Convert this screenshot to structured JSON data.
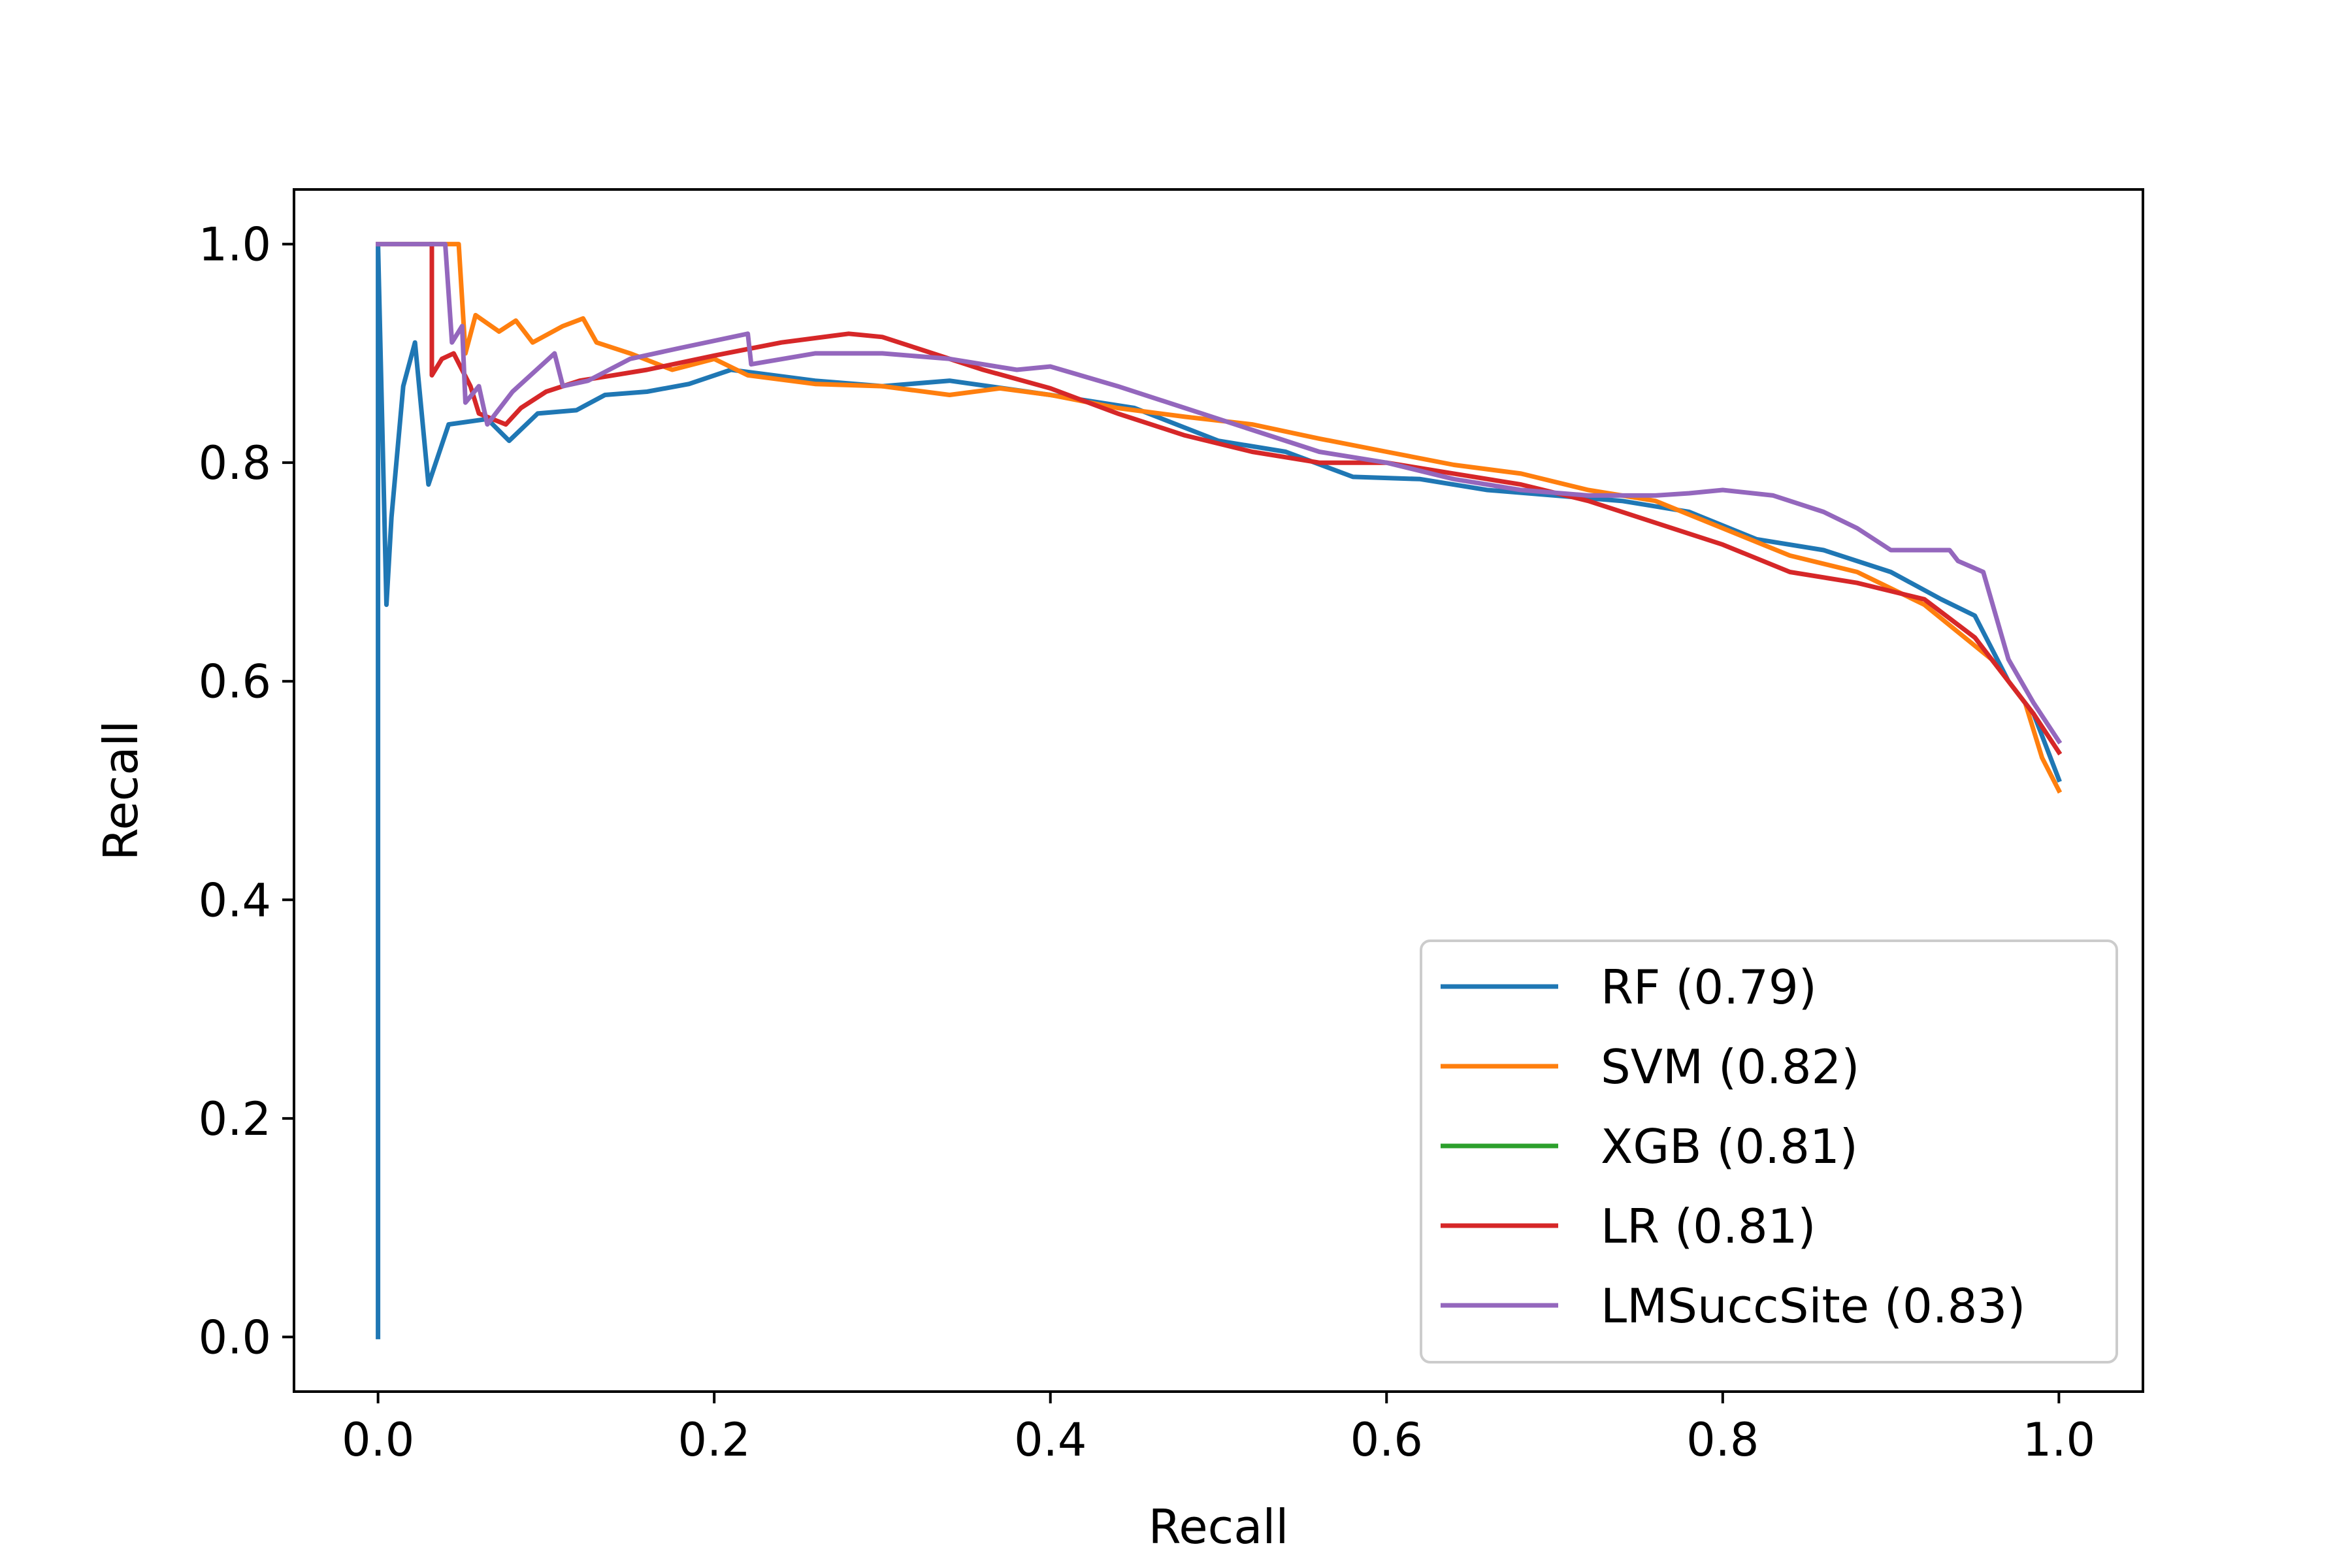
{
  "chart_data": {
    "type": "line",
    "title": "",
    "xlabel": "Recall",
    "ylabel": "Recall",
    "xlim": [
      -0.05,
      1.05
    ],
    "ylim": [
      -0.05,
      1.05
    ],
    "xticks": [
      0.0,
      0.2,
      0.4,
      0.6,
      0.8,
      1.0
    ],
    "xtick_labels": [
      "0.0",
      "0.2",
      "0.4",
      "0.6",
      "0.8",
      "1.0"
    ],
    "yticks": [
      0.0,
      0.2,
      0.4,
      0.6,
      0.8,
      1.0
    ],
    "ytick_labels": [
      "0.0",
      "0.2",
      "0.4",
      "0.6",
      "0.8",
      "1.0"
    ],
    "grid": false,
    "legend_position": "lower-right",
    "series": [
      {
        "name": "RF",
        "label": "RF (0.79)",
        "auc": 0.79,
        "color": "#1f77b4",
        "x": [
          0.0,
          0.0,
          0.005,
          0.008,
          0.015,
          0.022,
          0.03,
          0.042,
          0.065,
          0.078,
          0.095,
          0.118,
          0.135,
          0.16,
          0.185,
          0.21,
          0.235,
          0.26,
          0.3,
          0.34,
          0.4,
          0.45,
          0.5,
          0.54,
          0.58,
          0.62,
          0.66,
          0.7,
          0.74,
          0.78,
          0.82,
          0.86,
          0.9,
          0.93,
          0.95,
          0.97,
          0.985,
          1.0
        ],
        "y": [
          0.0,
          1.0,
          0.67,
          0.75,
          0.87,
          0.91,
          0.78,
          0.835,
          0.84,
          0.82,
          0.845,
          0.848,
          0.862,
          0.865,
          0.872,
          0.885,
          0.88,
          0.875,
          0.87,
          0.875,
          0.862,
          0.85,
          0.82,
          0.81,
          0.787,
          0.785,
          0.775,
          0.77,
          0.765,
          0.755,
          0.73,
          0.72,
          0.7,
          0.675,
          0.66,
          0.6,
          0.57,
          0.51
        ]
      },
      {
        "name": "SVM",
        "label": "SVM (0.82)",
        "auc": 0.82,
        "color": "#ff7f0e",
        "x": [
          0.0,
          0.048,
          0.052,
          0.058,
          0.072,
          0.082,
          0.092,
          0.11,
          0.122,
          0.13,
          0.15,
          0.175,
          0.2,
          0.22,
          0.26,
          0.3,
          0.34,
          0.37,
          0.4,
          0.44,
          0.48,
          0.52,
          0.56,
          0.6,
          0.64,
          0.68,
          0.72,
          0.76,
          0.8,
          0.84,
          0.88,
          0.92,
          0.96,
          0.98,
          0.99,
          1.0
        ],
        "y": [
          1.0,
          1.0,
          0.9,
          0.935,
          0.92,
          0.93,
          0.91,
          0.925,
          0.932,
          0.91,
          0.9,
          0.885,
          0.895,
          0.88,
          0.872,
          0.87,
          0.862,
          0.868,
          0.862,
          0.85,
          0.842,
          0.835,
          0.822,
          0.81,
          0.798,
          0.79,
          0.775,
          0.765,
          0.74,
          0.715,
          0.7,
          0.67,
          0.62,
          0.58,
          0.53,
          0.5
        ]
      },
      {
        "name": "XGB",
        "label": "XGB (0.81)",
        "auc": 0.81,
        "color": "#2ca02c",
        "x": [],
        "y": []
      },
      {
        "name": "LR",
        "label": "LR (0.81)",
        "auc": 0.81,
        "color": "#d62728",
        "x": [
          0.032,
          0.032,
          0.038,
          0.045,
          0.055,
          0.06,
          0.068,
          0.076,
          0.085,
          0.1,
          0.12,
          0.14,
          0.16,
          0.2,
          0.24,
          0.28,
          0.3,
          0.32,
          0.36,
          0.4,
          0.44,
          0.48,
          0.52,
          0.56,
          0.6,
          0.64,
          0.68,
          0.72,
          0.76,
          0.8,
          0.84,
          0.88,
          0.92,
          0.95,
          0.97,
          0.985,
          1.0
        ],
        "y": [
          1.0,
          0.88,
          0.895,
          0.9,
          0.87,
          0.845,
          0.84,
          0.835,
          0.85,
          0.865,
          0.875,
          0.88,
          0.885,
          0.898,
          0.91,
          0.918,
          0.915,
          0.905,
          0.885,
          0.868,
          0.845,
          0.825,
          0.81,
          0.8,
          0.8,
          0.79,
          0.78,
          0.765,
          0.745,
          0.725,
          0.7,
          0.69,
          0.675,
          0.64,
          0.6,
          0.57,
          0.535
        ]
      },
      {
        "name": "LMSuccSite",
        "label": "LMSuccSite (0.83)",
        "auc": 0.83,
        "color": "#9467bd",
        "x": [
          0.0,
          0.04,
          0.044,
          0.05,
          0.052,
          0.06,
          0.065,
          0.08,
          0.105,
          0.11,
          0.125,
          0.15,
          0.18,
          0.22,
          0.222,
          0.26,
          0.3,
          0.34,
          0.38,
          0.4,
          0.44,
          0.48,
          0.52,
          0.56,
          0.6,
          0.64,
          0.68,
          0.72,
          0.76,
          0.78,
          0.8,
          0.83,
          0.86,
          0.88,
          0.9,
          0.92,
          0.935,
          0.94,
          0.955,
          0.97,
          0.985,
          1.0
        ],
        "y": [
          1.0,
          1.0,
          0.91,
          0.925,
          0.855,
          0.87,
          0.835,
          0.865,
          0.9,
          0.87,
          0.875,
          0.895,
          0.905,
          0.918,
          0.89,
          0.9,
          0.9,
          0.895,
          0.885,
          0.888,
          0.87,
          0.85,
          0.83,
          0.81,
          0.8,
          0.785,
          0.775,
          0.77,
          0.77,
          0.772,
          0.775,
          0.77,
          0.755,
          0.74,
          0.72,
          0.72,
          0.72,
          0.71,
          0.7,
          0.62,
          0.58,
          0.545
        ]
      }
    ]
  }
}
